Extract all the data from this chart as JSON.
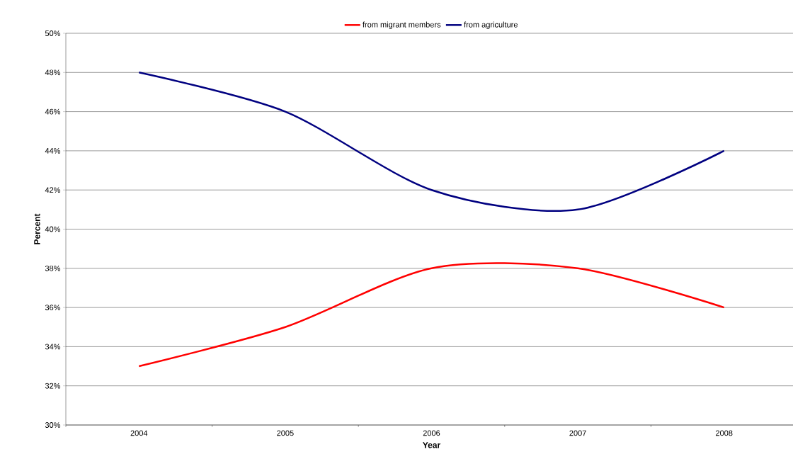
{
  "chart_data": {
    "type": "line",
    "xlabel": "Year",
    "ylabel": "Percent",
    "categories": [
      "2004",
      "2005",
      "2006",
      "2007",
      "2008"
    ],
    "series": [
      {
        "name": "from migrant members",
        "color": "#ff0000",
        "values": [
          33,
          35,
          38,
          38,
          36
        ]
      },
      {
        "name": "from agriculture",
        "color": "#000080",
        "values": [
          48,
          46,
          42,
          41,
          44
        ]
      }
    ],
    "ylim": [
      30,
      50
    ],
    "yticks": [
      {
        "value": 30,
        "label": "30%"
      },
      {
        "value": 32,
        "label": "32%"
      },
      {
        "value": 34,
        "label": "34%"
      },
      {
        "value": 36,
        "label": "36%"
      },
      {
        "value": 38,
        "label": "38%"
      },
      {
        "value": 40,
        "label": "40%"
      },
      {
        "value": 42,
        "label": "42%"
      },
      {
        "value": 44,
        "label": "44%"
      },
      {
        "value": 46,
        "label": "46%"
      },
      {
        "value": 48,
        "label": "48%"
      },
      {
        "value": 50,
        "label": "50%"
      }
    ],
    "grid": "y",
    "legend": "top",
    "marker": "none",
    "line_style": "solid"
  }
}
